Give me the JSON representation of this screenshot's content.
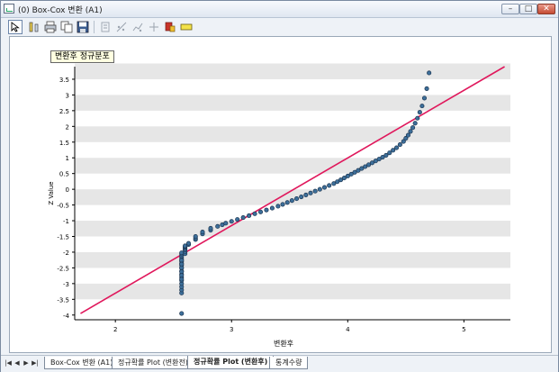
{
  "window": {
    "title": "(0) Box-Cox 변환 (A1)",
    "min_glyph": "–",
    "max_glyph": "□",
    "close_glyph": "✕"
  },
  "toolbar": {
    "items": [
      {
        "icon": "pointer-icon"
      },
      {
        "icon": "chart-properties-icon"
      },
      {
        "icon": "print-icon"
      },
      {
        "icon": "copy-icon"
      },
      {
        "icon": "save-icon"
      },
      {
        "icon": "export-icon"
      },
      {
        "icon": "scatter-tool-icon"
      },
      {
        "icon": "trend-tool-icon"
      },
      {
        "icon": "crosshair-icon"
      },
      {
        "icon": "highlight-icon"
      },
      {
        "icon": "label-icon"
      }
    ]
  },
  "legend_label": "변환후 정규분포",
  "chart_data": {
    "type": "scatter",
    "xlabel": "변환후",
    "ylabel": "Z Value",
    "xlim": [
      1.65,
      5.4
    ],
    "ylim": [
      -4.15,
      3.9
    ],
    "x_ticks": [
      "2",
      "3",
      "4",
      "5"
    ],
    "y_ticks": [
      "3.5",
      "3",
      "2.5",
      "2",
      "1.5",
      "1",
      "0.5",
      "0",
      "-0.5",
      "-1",
      "-1.5",
      "-2",
      "-2.5",
      "-3",
      "-3.5",
      "-4"
    ],
    "grid": "alternating horizontal bands",
    "fit_line": {
      "x": [
        1.7,
        5.35
      ],
      "y": [
        -3.95,
        3.9
      ],
      "color": "#e0185c"
    },
    "marker_color": "#3d6f9a",
    "points": {
      "x": [
        2.57,
        2.57,
        2.57,
        2.57,
        2.57,
        2.57,
        2.57,
        2.57,
        2.57,
        2.57,
        2.57,
        2.57,
        2.57,
        2.57,
        2.57,
        2.57,
        2.57,
        2.57,
        2.57,
        2.57,
        2.57,
        2.57,
        2.57,
        2.57,
        2.6,
        2.6,
        2.6,
        2.6,
        2.6,
        2.6,
        2.6,
        2.63,
        2.63,
        2.69,
        2.69,
        2.69,
        2.75,
        2.75,
        2.82,
        2.82,
        2.88,
        2.92,
        2.95,
        3.0,
        3.05,
        3.1,
        3.15,
        3.2,
        3.25,
        3.3,
        3.35,
        3.4,
        3.44,
        3.48,
        3.52,
        3.56,
        3.6,
        3.64,
        3.68,
        3.72,
        3.76,
        3.8,
        3.84,
        3.88,
        3.91,
        3.94,
        3.97,
        4.0,
        4.03,
        4.06,
        4.09,
        4.12,
        4.15,
        4.18,
        4.21,
        4.24,
        4.27,
        4.3,
        4.33,
        4.36,
        4.39,
        4.42,
        4.45,
        4.48,
        4.5,
        4.52,
        4.54,
        4.56,
        4.58,
        4.6,
        4.62,
        4.64,
        4.66,
        4.68,
        4.7
      ],
      "y": [
        -3.95,
        -3.3,
        -3.2,
        -3.1,
        -3.0,
        -2.9,
        -2.8,
        -2.7,
        -2.6,
        -2.5,
        -2.42,
        -2.36,
        -2.3,
        -2.24,
        -2.18,
        -2.12,
        -2.06,
        -2.02,
        -2.26,
        -2.38,
        -2.5,
        -2.62,
        -2.74,
        -2.86,
        -2.05,
        -1.98,
        -1.93,
        -1.89,
        -1.85,
        -1.82,
        -1.8,
        -1.76,
        -1.72,
        -1.6,
        -1.55,
        -1.5,
        -1.42,
        -1.36,
        -1.3,
        -1.24,
        -1.18,
        -1.13,
        -1.08,
        -1.02,
        -0.96,
        -0.9,
        -0.84,
        -0.78,
        -0.72,
        -0.66,
        -0.6,
        -0.54,
        -0.48,
        -0.42,
        -0.36,
        -0.3,
        -0.24,
        -0.18,
        -0.12,
        -0.06,
        0.0,
        0.06,
        0.12,
        0.18,
        0.24,
        0.3,
        0.36,
        0.42,
        0.48,
        0.54,
        0.6,
        0.66,
        0.72,
        0.78,
        0.84,
        0.9,
        0.96,
        1.02,
        1.08,
        1.16,
        1.24,
        1.32,
        1.42,
        1.52,
        1.62,
        1.72,
        1.84,
        1.96,
        2.1,
        2.26,
        2.45,
        2.65,
        2.9,
        3.2,
        3.7
      ]
    }
  },
  "tabs": {
    "nav": [
      "|◀",
      "◀",
      "▶",
      "▶|"
    ],
    "items": [
      {
        "label": "Box-Cox 변환 (A1)"
      },
      {
        "label": "정규확률 Plot (변환전)"
      },
      {
        "label": "정규확률 Plot (변환후)"
      },
      {
        "label": "통계수량"
      }
    ]
  }
}
